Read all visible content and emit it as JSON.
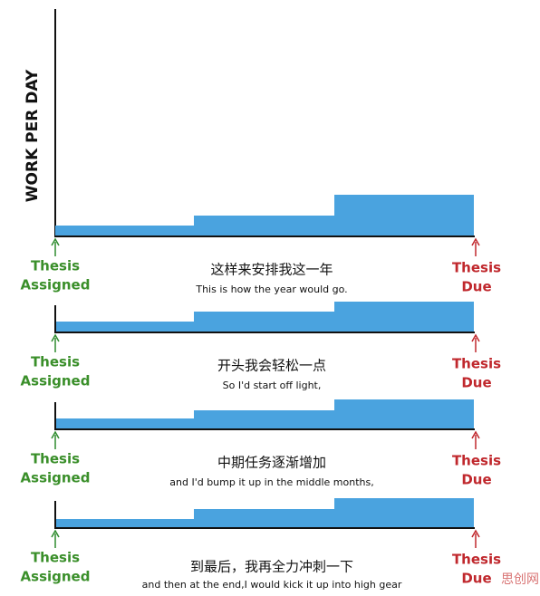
{
  "axis_label": "WORK PER DAY",
  "panels": [
    {
      "start_label": [
        "Thesis",
        "Assigned"
      ],
      "due_label": [
        "Thesis",
        "Due"
      ],
      "subtitle_zh": "这样来安排我这一年",
      "subtitle_en": "This is how the year would go."
    },
    {
      "start_label": [
        "Thesis",
        "Assigned"
      ],
      "due_label": [
        "Thesis",
        "Due"
      ],
      "subtitle_zh": "开头我会轻松一点",
      "subtitle_en": "So I'd start off light,"
    },
    {
      "start_label": [
        "Thesis",
        "Assigned"
      ],
      "due_label": [
        "Thesis",
        "Due"
      ],
      "subtitle_zh": "中期任务逐渐增加",
      "subtitle_en": "and I'd bump it up in the middle months,"
    },
    {
      "start_label": [
        "Thesis",
        "Assigned"
      ],
      "due_label": [
        "Thesis",
        "Due"
      ],
      "subtitle_zh": "到最后，我再全力冲刺一下",
      "subtitle_en": "and then at the end,I would kick it up into high gear"
    }
  ],
  "watermark": "思创网"
}
